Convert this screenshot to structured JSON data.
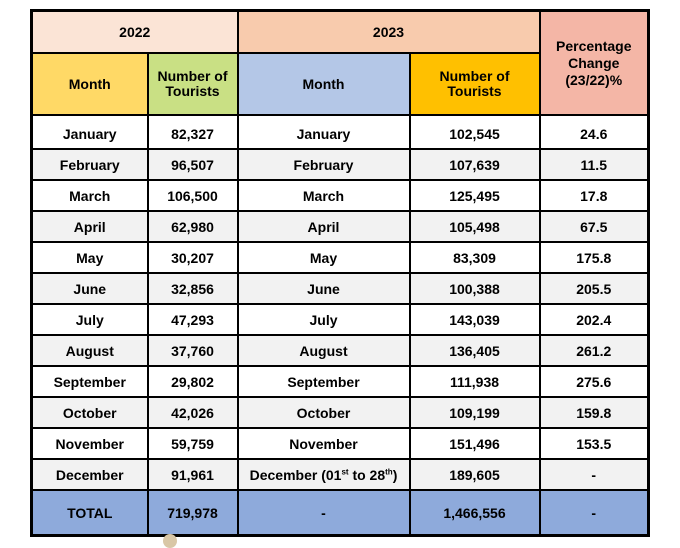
{
  "headers": {
    "year_2022": "2022",
    "year_2023": "2023",
    "pct_line1": "Percentage",
    "pct_line2": "Change",
    "pct_line3": "(23/22)%",
    "month_2022": "Month",
    "tourists_2022_line1": "Number of",
    "tourists_2022_line2": "Tourists",
    "month_2023": "Month",
    "tourists_2023_line1": "Number of",
    "tourists_2023_line2": "Tourists"
  },
  "rows": [
    {
      "month_2022": "January",
      "tourists_2022": "82,327",
      "month_2023": "January",
      "tourists_2023": "102,545",
      "pct": "24.6"
    },
    {
      "month_2022": "February",
      "tourists_2022": "96,507",
      "month_2023": "February",
      "tourists_2023": "107,639",
      "pct": "11.5"
    },
    {
      "month_2022": "March",
      "tourists_2022": "106,500",
      "month_2023": "March",
      "tourists_2023": "125,495",
      "pct": "17.8"
    },
    {
      "month_2022": "April",
      "tourists_2022": "62,980",
      "month_2023": "April",
      "tourists_2023": "105,498",
      "pct": "67.5"
    },
    {
      "month_2022": "May",
      "tourists_2022": "30,207",
      "month_2023": "May",
      "tourists_2023": "83,309",
      "pct": "175.8"
    },
    {
      "month_2022": "June",
      "tourists_2022": "32,856",
      "month_2023": "June",
      "tourists_2023": "100,388",
      "pct": "205.5"
    },
    {
      "month_2022": "July",
      "tourists_2022": "47,293",
      "month_2023": "July",
      "tourists_2023": "143,039",
      "pct": "202.4"
    },
    {
      "month_2022": "August",
      "tourists_2022": "37,760",
      "month_2023": "August",
      "tourists_2023": "136,405",
      "pct": "261.2"
    },
    {
      "month_2022": "September",
      "tourists_2022": "29,802",
      "month_2023": "September",
      "tourists_2023": "111,938",
      "pct": "275.6"
    },
    {
      "month_2022": "October",
      "tourists_2022": "42,026",
      "month_2023": "October",
      "tourists_2023": "109,199",
      "pct": "159.8"
    },
    {
      "month_2022": "November",
      "tourists_2022": "59,759",
      "month_2023": "November",
      "tourists_2023": "151,496",
      "pct": "153.5"
    }
  ],
  "december": {
    "month_2022": "December",
    "tourists_2022": "91,961",
    "month_2023_pre": "December (01",
    "sup1": "st",
    "month_2023_mid": " to 28",
    "sup2": "th",
    "month_2023_post": ")",
    "tourists_2023": "189,605",
    "pct": "-"
  },
  "total": {
    "label": "TOTAL",
    "tourists_2022": "719,978",
    "month_2023": "-",
    "tourists_2023": "1,466,556",
    "pct": "-"
  }
}
